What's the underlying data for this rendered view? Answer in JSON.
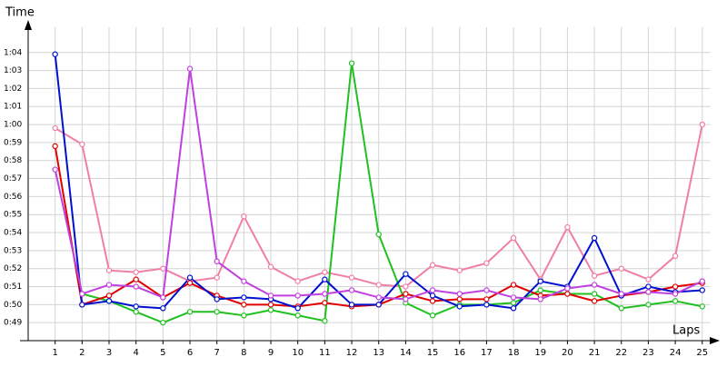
{
  "chart_data": {
    "type": "line",
    "y_label": "Time",
    "x_label": "Laps",
    "x": [
      1,
      2,
      3,
      4,
      5,
      6,
      7,
      8,
      9,
      10,
      11,
      12,
      13,
      14,
      15,
      16,
      17,
      18,
      19,
      20,
      21,
      22,
      23,
      24,
      25
    ],
    "xlim": [
      0,
      25.5
    ],
    "xticks": [
      1,
      2,
      3,
      4,
      5,
      6,
      7,
      8,
      9,
      10,
      11,
      12,
      13,
      14,
      15,
      16,
      17,
      18,
      19,
      20,
      21,
      22,
      23,
      24,
      25
    ],
    "ylim": [
      48,
      65.4
    ],
    "yticks": [
      {
        "value": 49,
        "label": "0:49"
      },
      {
        "value": 50,
        "label": "0:50"
      },
      {
        "value": 51,
        "label": "0:51"
      },
      {
        "value": 52,
        "label": "0:52"
      },
      {
        "value": 53,
        "label": "0:53"
      },
      {
        "value": 54,
        "label": "0:54"
      },
      {
        "value": 55,
        "label": "0:55"
      },
      {
        "value": 56,
        "label": "0:56"
      },
      {
        "value": 57,
        "label": "0:57"
      },
      {
        "value": 58,
        "label": "0:58"
      },
      {
        "value": 59,
        "label": "0:59"
      },
      {
        "value": 60,
        "label": "1:00"
      },
      {
        "value": 61,
        "label": "1:01"
      },
      {
        "value": 62,
        "label": "1:02"
      },
      {
        "value": 63,
        "label": "1:03"
      },
      {
        "value": 64,
        "label": "1:04"
      }
    ],
    "grid": true,
    "series": [
      {
        "color": "#f07fa6",
        "values": [
          59.8,
          58.9,
          51.9,
          51.8,
          52.0,
          51.3,
          51.5,
          54.9,
          52.1,
          51.3,
          51.8,
          51.5,
          51.1,
          51.0,
          52.2,
          51.9,
          52.3,
          53.7,
          51.4,
          54.3,
          51.6,
          52.0,
          51.4,
          52.7,
          60.0
        ]
      },
      {
        "color": "#20c020",
        "values": [
          null,
          50.6,
          50.2,
          49.6,
          49.0,
          49.6,
          49.6,
          49.4,
          49.7,
          49.4,
          49.1,
          63.4,
          53.9,
          50.1,
          49.4,
          50.0,
          50.0,
          50.1,
          50.8,
          50.6,
          50.6,
          49.8,
          50.0,
          50.2,
          49.9
        ]
      },
      {
        "color": "#e00000",
        "values": [
          58.8,
          50.0,
          50.5,
          51.4,
          50.4,
          51.2,
          50.5,
          50.0,
          50.0,
          49.9,
          50.1,
          49.9,
          50.0,
          50.6,
          50.2,
          50.3,
          50.3,
          51.1,
          50.5,
          50.6,
          50.2,
          50.5,
          50.7,
          51.0,
          51.2
        ]
      },
      {
        "color": "#0010d0",
        "values": [
          63.9,
          50.0,
          50.2,
          49.9,
          49.8,
          51.5,
          50.3,
          50.4,
          50.3,
          49.8,
          51.4,
          50.0,
          50.0,
          51.7,
          50.5,
          49.9,
          50.0,
          49.8,
          51.3,
          51.0,
          53.7,
          50.5,
          51.0,
          50.7,
          50.8
        ]
      },
      {
        "color": "#c040e0",
        "values": [
          57.5,
          50.6,
          51.1,
          51.0,
          50.4,
          63.1,
          52.4,
          51.3,
          50.5,
          50.5,
          50.6,
          50.8,
          50.4,
          50.3,
          50.8,
          50.6,
          50.8,
          50.4,
          50.3,
          50.9,
          51.1,
          50.6,
          50.7,
          50.6,
          51.3
        ]
      }
    ]
  }
}
